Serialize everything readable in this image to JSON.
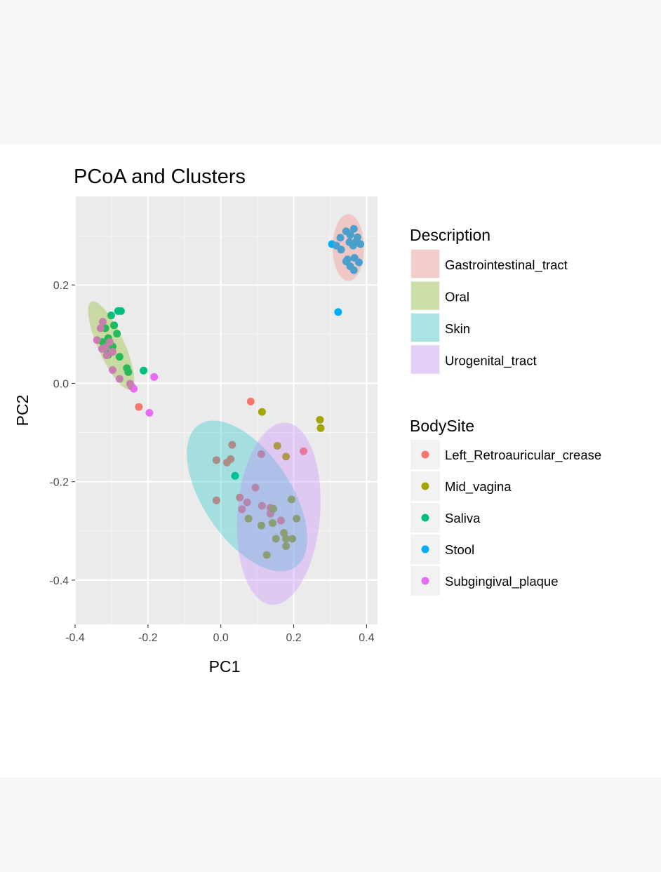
{
  "chart_data": {
    "type": "scatter",
    "title": "PCoA and Clusters",
    "xlabel": "PC1",
    "ylabel": "PC2",
    "xlim": [
      -0.4,
      0.43
    ],
    "ylim": [
      -0.49,
      0.38
    ],
    "xticks": [
      -0.4,
      -0.2,
      0.0,
      0.2,
      0.4
    ],
    "xtick_labels": [
      "-0.4",
      "-0.2",
      "0.0",
      "0.2",
      "0.4"
    ],
    "yticks": [
      -0.4,
      -0.2,
      0.0,
      0.2
    ],
    "ytick_labels": [
      "-0.4",
      "-0.2",
      "0.0",
      "0.2"
    ],
    "grid": true,
    "legend_placement": "right",
    "ellipse_legend": {
      "title": "Description",
      "entries": [
        {
          "name": "Gastrointestinal_tract",
          "color": "#F8766D"
        },
        {
          "name": "Oral",
          "color": "#7CAE00"
        },
        {
          "name": "Skin",
          "color": "#00BFC4"
        },
        {
          "name": "Urogenital_tract",
          "color": "#C77CFF"
        }
      ]
    },
    "ellipses": [
      {
        "name": "Gastrointestinal_tract",
        "color": "#F8766D",
        "center": [
          0.35,
          0.276
        ],
        "major_end": [
          0.35,
          0.344
        ],
        "minor_end": [
          0.393,
          0.276
        ]
      },
      {
        "name": "Oral",
        "color": "#7CAE00",
        "center": [
          -0.301,
          0.077
        ],
        "major_end": [
          -0.355,
          0.166
        ],
        "minor_end": [
          -0.268,
          0.088
        ]
      },
      {
        "name": "Skin",
        "color": "#00BFC4",
        "center": [
          0.072,
          -0.229
        ],
        "major_end": [
          -0.06,
          -0.084
        ],
        "minor_end": [
          0.173,
          -0.181
        ]
      },
      {
        "name": "Urogenital_tract",
        "color": "#C77CFF",
        "center": [
          0.159,
          -0.265
        ],
        "major_end": [
          0.179,
          -0.08
        ],
        "minor_end": [
          0.272,
          -0.272
        ]
      }
    ],
    "point_legend": {
      "title": "BodySite",
      "entries": [
        {
          "name": "Left_Retroauricular_crease",
          "color": "#F8766D"
        },
        {
          "name": "Mid_vagina",
          "color": "#A3A500"
        },
        {
          "name": "Saliva",
          "color": "#00BF7D"
        },
        {
          "name": "Stool",
          "color": "#00B0F6"
        },
        {
          "name": "Subgingival_plaque",
          "color": "#E76BF3"
        }
      ]
    },
    "series": [
      {
        "name": "Left_Retroauricular_crease",
        "color": "#F8766D",
        "points": [
          [
            -0.225,
            -0.048
          ],
          [
            0.082,
            -0.037
          ],
          [
            0.227,
            -0.138
          ],
          [
            0.031,
            -0.125
          ],
          [
            -0.012,
            -0.156
          ],
          [
            0.017,
            -0.161
          ],
          [
            0.027,
            -0.154
          ],
          [
            -0.012,
            -0.238
          ],
          [
            0.052,
            -0.232
          ],
          [
            0.111,
            -0.144
          ],
          [
            0.095,
            -0.212
          ],
          [
            0.072,
            -0.242
          ],
          [
            0.058,
            -0.256
          ],
          [
            0.113,
            -0.249
          ],
          [
            0.136,
            -0.265
          ],
          [
            0.165,
            -0.279
          ],
          [
            0.136,
            -0.253
          ]
        ]
      },
      {
        "name": "Mid_vagina",
        "color": "#A3A500",
        "points": [
          [
            0.113,
            -0.058
          ],
          [
            0.272,
            -0.074
          ],
          [
            0.274,
            -0.091
          ],
          [
            0.155,
            -0.127
          ],
          [
            0.179,
            -0.149
          ],
          [
            0.076,
            -0.275
          ],
          [
            0.142,
            -0.284
          ],
          [
            0.111,
            -0.289
          ],
          [
            0.194,
            -0.236
          ],
          [
            0.208,
            -0.275
          ],
          [
            0.173,
            -0.304
          ],
          [
            0.151,
            -0.316
          ],
          [
            0.179,
            -0.316
          ],
          [
            0.196,
            -0.316
          ],
          [
            0.179,
            -0.331
          ],
          [
            0.126,
            -0.349
          ],
          [
            0.144,
            -0.255
          ]
        ]
      },
      {
        "name": "Saliva",
        "color": "#00BF7D",
        "points": [
          [
            -0.282,
            0.147
          ],
          [
            -0.274,
            0.147
          ],
          [
            -0.301,
            0.138
          ],
          [
            -0.293,
            0.118
          ],
          [
            -0.317,
            0.112
          ],
          [
            -0.285,
            0.101
          ],
          [
            -0.309,
            0.092
          ],
          [
            -0.324,
            0.084
          ],
          [
            -0.297,
            0.075
          ],
          [
            -0.317,
            0.07
          ],
          [
            -0.278,
            0.054
          ],
          [
            -0.258,
            0.031
          ],
          [
            -0.254,
            0.023
          ],
          [
            -0.212,
            0.026
          ],
          [
            -0.309,
            0.058
          ],
          [
            0.039,
            -0.188
          ]
        ]
      },
      {
        "name": "Stool",
        "color": "#00B0F6",
        "points": [
          [
            0.322,
            0.145
          ],
          [
            0.328,
            0.296
          ],
          [
            0.355,
            0.302
          ],
          [
            0.365,
            0.314
          ],
          [
            0.344,
            0.309
          ],
          [
            0.353,
            0.287
          ],
          [
            0.375,
            0.297
          ],
          [
            0.383,
            0.283
          ],
          [
            0.363,
            0.28
          ],
          [
            0.317,
            0.28
          ],
          [
            0.33,
            0.272
          ],
          [
            0.305,
            0.283
          ],
          [
            0.348,
            0.252
          ],
          [
            0.367,
            0.255
          ],
          [
            0.355,
            0.238
          ],
          [
            0.379,
            0.246
          ],
          [
            0.365,
            0.23
          ],
          [
            0.344,
            0.248
          ],
          [
            0.373,
            0.29
          ]
        ]
      },
      {
        "name": "Subgingival_plaque",
        "color": "#E76BF3",
        "points": [
          [
            -0.183,
            0.013
          ],
          [
            -0.196,
            -0.06
          ],
          [
            -0.239,
            -0.011
          ],
          [
            -0.245,
            -0.006
          ],
          [
            -0.324,
            0.125
          ],
          [
            -0.33,
            0.112
          ],
          [
            -0.34,
            0.088
          ],
          [
            -0.305,
            0.084
          ],
          [
            -0.317,
            0.073
          ],
          [
            -0.326,
            0.07
          ],
          [
            -0.297,
            0.064
          ],
          [
            -0.313,
            0.057
          ],
          [
            -0.297,
            0.027
          ],
          [
            -0.278,
            0.009
          ],
          [
            -0.249,
            -0.001
          ]
        ]
      }
    ]
  }
}
